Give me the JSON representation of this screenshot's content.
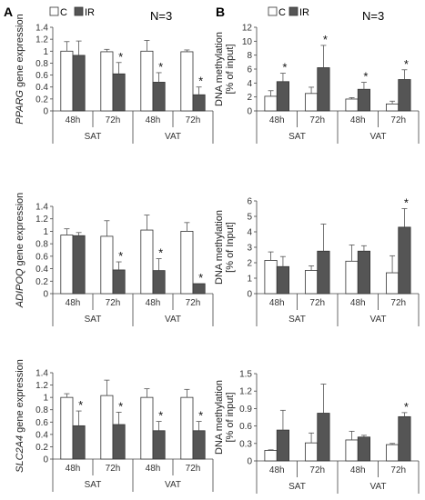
{
  "panel_labels": [
    "A",
    "B"
  ],
  "legend": {
    "c_label": "C",
    "ir_label": "IR",
    "n_label": "N=3"
  },
  "chart_data": [
    {
      "type": "bar",
      "panel": "A",
      "ylabel": "PPARG gene expression",
      "ylabel_gene": "PPARG",
      "ylabel_rest": " gene expression",
      "ylim": [
        0,
        1.4
      ],
      "yticks": [
        "0",
        "0.2",
        "0.4",
        "0.6",
        "0.8",
        "1",
        "1.2",
        "1.4"
      ],
      "categories": [
        "48h",
        "72h",
        "48h",
        "72h"
      ],
      "groups": [
        "SAT",
        "VAT"
      ],
      "series": [
        {
          "name": "C",
          "values": [
            1.0,
            0.99,
            1.0,
            0.99
          ],
          "errors": [
            0.16,
            0.04,
            0.18,
            0.03
          ],
          "sig": [
            "",
            "",
            "",
            ""
          ]
        },
        {
          "name": "IR",
          "values": [
            0.93,
            0.62,
            0.48,
            0.27
          ],
          "errors": [
            0.24,
            0.19,
            0.16,
            0.13
          ],
          "sig": [
            "",
            "*",
            "*",
            "*"
          ]
        }
      ]
    },
    {
      "type": "bar",
      "panel": "B",
      "ylabel_line1": "DNA methylation",
      "ylabel_line2": "[% of input]",
      "ylim": [
        0,
        12
      ],
      "yticks": [
        "0",
        "2",
        "4",
        "6",
        "8",
        "10",
        "12"
      ],
      "categories": [
        "48h",
        "72h",
        "48h",
        "72h"
      ],
      "groups": [
        "SAT",
        "VAT"
      ],
      "series": [
        {
          "name": "C",
          "values": [
            2.1,
            2.5,
            1.7,
            1.0
          ],
          "errors": [
            0.8,
            0.9,
            0.2,
            0.4
          ],
          "sig": [
            "",
            "",
            "",
            ""
          ]
        },
        {
          "name": "IR",
          "values": [
            4.2,
            6.2,
            3.1,
            4.5
          ],
          "errors": [
            1.2,
            3.2,
            1.0,
            1.4
          ],
          "sig": [
            "*",
            "*",
            "*",
            "*"
          ]
        }
      ]
    },
    {
      "type": "bar",
      "panel": "A",
      "ylabel": "ADIPOQ gene expression",
      "ylabel_gene": "ADIPOQ",
      "ylabel_rest": " gene expression",
      "ylim": [
        0,
        1.4
      ],
      "yticks": [
        "0",
        "0.2",
        "0.4",
        "0.6",
        "0.8",
        "1",
        "1.2",
        "1.4"
      ],
      "categories": [
        "48h",
        "72h",
        "48h",
        "72h"
      ],
      "groups": [
        "SAT",
        "VAT"
      ],
      "series": [
        {
          "name": "C",
          "values": [
            0.94,
            0.92,
            1.02,
            1.0
          ],
          "errors": [
            0.1,
            0.25,
            0.24,
            0.14
          ],
          "sig": [
            "",
            "",
            "",
            ""
          ]
        },
        {
          "name": "IR",
          "values": [
            0.93,
            0.38,
            0.37,
            0.16
          ],
          "errors": [
            0.05,
            0.13,
            0.19,
            0.0
          ],
          "sig": [
            "",
            "*",
            "*",
            "*"
          ]
        }
      ]
    },
    {
      "type": "bar",
      "panel": "B",
      "ylabel_line1": "DNA methylation",
      "ylabel_line2": "[% of Input]",
      "ylim": [
        0,
        6
      ],
      "yticks": [
        "0",
        "1",
        "2",
        "3",
        "4",
        "5",
        "6"
      ],
      "categories": [
        "48h",
        "72h",
        "48h",
        "72h"
      ],
      "groups": [
        "SAT",
        "VAT"
      ],
      "series": [
        {
          "name": "C",
          "values": [
            2.15,
            1.5,
            2.1,
            1.35
          ],
          "errors": [
            0.55,
            0.3,
            1.05,
            1.1
          ],
          "sig": [
            "",
            "",
            "",
            ""
          ]
        },
        {
          "name": "IR",
          "values": [
            1.75,
            2.75,
            2.75,
            4.3
          ],
          "errors": [
            0.65,
            1.75,
            0.35,
            1.2
          ],
          "sig": [
            "",
            "",
            "",
            "*"
          ]
        }
      ]
    },
    {
      "type": "bar",
      "panel": "A",
      "ylabel": "SLC2A4 gene expression",
      "ylabel_gene": "SLC2A4",
      "ylabel_rest": " gene expression",
      "ylim": [
        0,
        1.4
      ],
      "yticks": [
        "0",
        "0.2",
        "0.4",
        "0.6",
        "0.8",
        "1",
        "1.2",
        "1.4"
      ],
      "categories": [
        "48h",
        "72h",
        "48h",
        "72h"
      ],
      "groups": [
        "SAT",
        "VAT"
      ],
      "series": [
        {
          "name": "C",
          "values": [
            1.0,
            1.03,
            1.0,
            1.0
          ],
          "errors": [
            0.06,
            0.25,
            0.14,
            0.13
          ],
          "sig": [
            "",
            "",
            "",
            ""
          ]
        },
        {
          "name": "IR",
          "values": [
            0.54,
            0.56,
            0.46,
            0.46
          ],
          "errors": [
            0.24,
            0.2,
            0.15,
            0.15
          ],
          "sig": [
            "*",
            "*",
            "*",
            "*"
          ]
        }
      ]
    },
    {
      "type": "bar",
      "panel": "B",
      "ylabel_line1": "DNA methylation",
      "ylabel_line2": "[% of input]",
      "ylim": [
        0,
        1.5
      ],
      "yticks": [
        "0",
        "0.3",
        "0.6",
        "0.9",
        "1.2",
        "1.5"
      ],
      "categories": [
        "48h",
        "72h",
        "48h",
        "72h"
      ],
      "groups": [
        "SAT",
        "VAT"
      ],
      "series": [
        {
          "name": "C",
          "values": [
            0.18,
            0.31,
            0.36,
            0.28
          ],
          "errors": [
            0.01,
            0.17,
            0.15,
            0.02
          ],
          "sig": [
            "",
            "",
            "",
            ""
          ]
        },
        {
          "name": "IR",
          "values": [
            0.53,
            0.82,
            0.41,
            0.76
          ],
          "errors": [
            0.34,
            0.5,
            0.03,
            0.07
          ],
          "sig": [
            "",
            "",
            "",
            "*"
          ]
        }
      ]
    }
  ]
}
